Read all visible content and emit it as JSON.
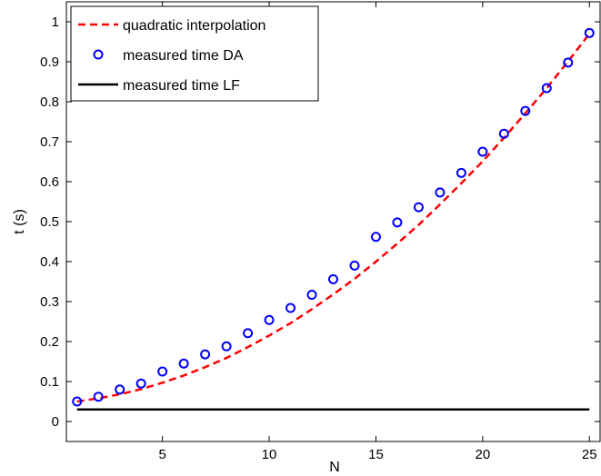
{
  "chart_data": {
    "type": "line",
    "title": "",
    "xlabel": "N",
    "ylabel": "t (s)",
    "xlim": [
      0.5,
      25.5
    ],
    "ylim": [
      -0.05,
      1.05
    ],
    "xticks": [
      5,
      10,
      15,
      20,
      25
    ],
    "yticks": [
      0,
      0.1,
      0.2,
      0.3,
      0.4,
      0.5,
      0.6,
      0.7,
      0.8,
      0.9,
      1
    ],
    "grid": false,
    "legend_position": "top-left",
    "x": [
      1,
      2,
      3,
      4,
      5,
      6,
      7,
      8,
      9,
      10,
      11,
      12,
      13,
      14,
      15,
      16,
      17,
      18,
      19,
      20,
      21,
      22,
      23,
      24,
      25
    ],
    "series": [
      {
        "name": "quadratic interpolation",
        "style": "dashed-line",
        "color": "#ff0000",
        "values": [
          0.05,
          0.058,
          0.068,
          0.081,
          0.097,
          0.115,
          0.136,
          0.159,
          0.186,
          0.215,
          0.246,
          0.281,
          0.318,
          0.357,
          0.4,
          0.445,
          0.492,
          0.543,
          0.596,
          0.651,
          0.71,
          0.771,
          0.834,
          0.901,
          0.97
        ]
      },
      {
        "name": "measured time DA",
        "style": "circle-markers",
        "color": "#0000ff",
        "values": [
          0.05,
          0.062,
          0.08,
          0.095,
          0.125,
          0.145,
          0.168,
          0.188,
          0.221,
          0.254,
          0.284,
          0.317,
          0.356,
          0.39,
          0.462,
          0.498,
          0.536,
          0.573,
          0.622,
          0.675,
          0.72,
          0.777,
          0.834,
          0.898,
          0.972
        ]
      },
      {
        "name": "measured time LF",
        "style": "solid-line",
        "color": "#000000",
        "values": [
          0.03,
          0.03,
          0.03,
          0.03,
          0.03,
          0.03,
          0.03,
          0.03,
          0.03,
          0.03,
          0.03,
          0.03,
          0.03,
          0.03,
          0.03,
          0.03,
          0.03,
          0.03,
          0.03,
          0.03,
          0.03,
          0.03,
          0.03,
          0.03,
          0.03
        ]
      }
    ]
  }
}
